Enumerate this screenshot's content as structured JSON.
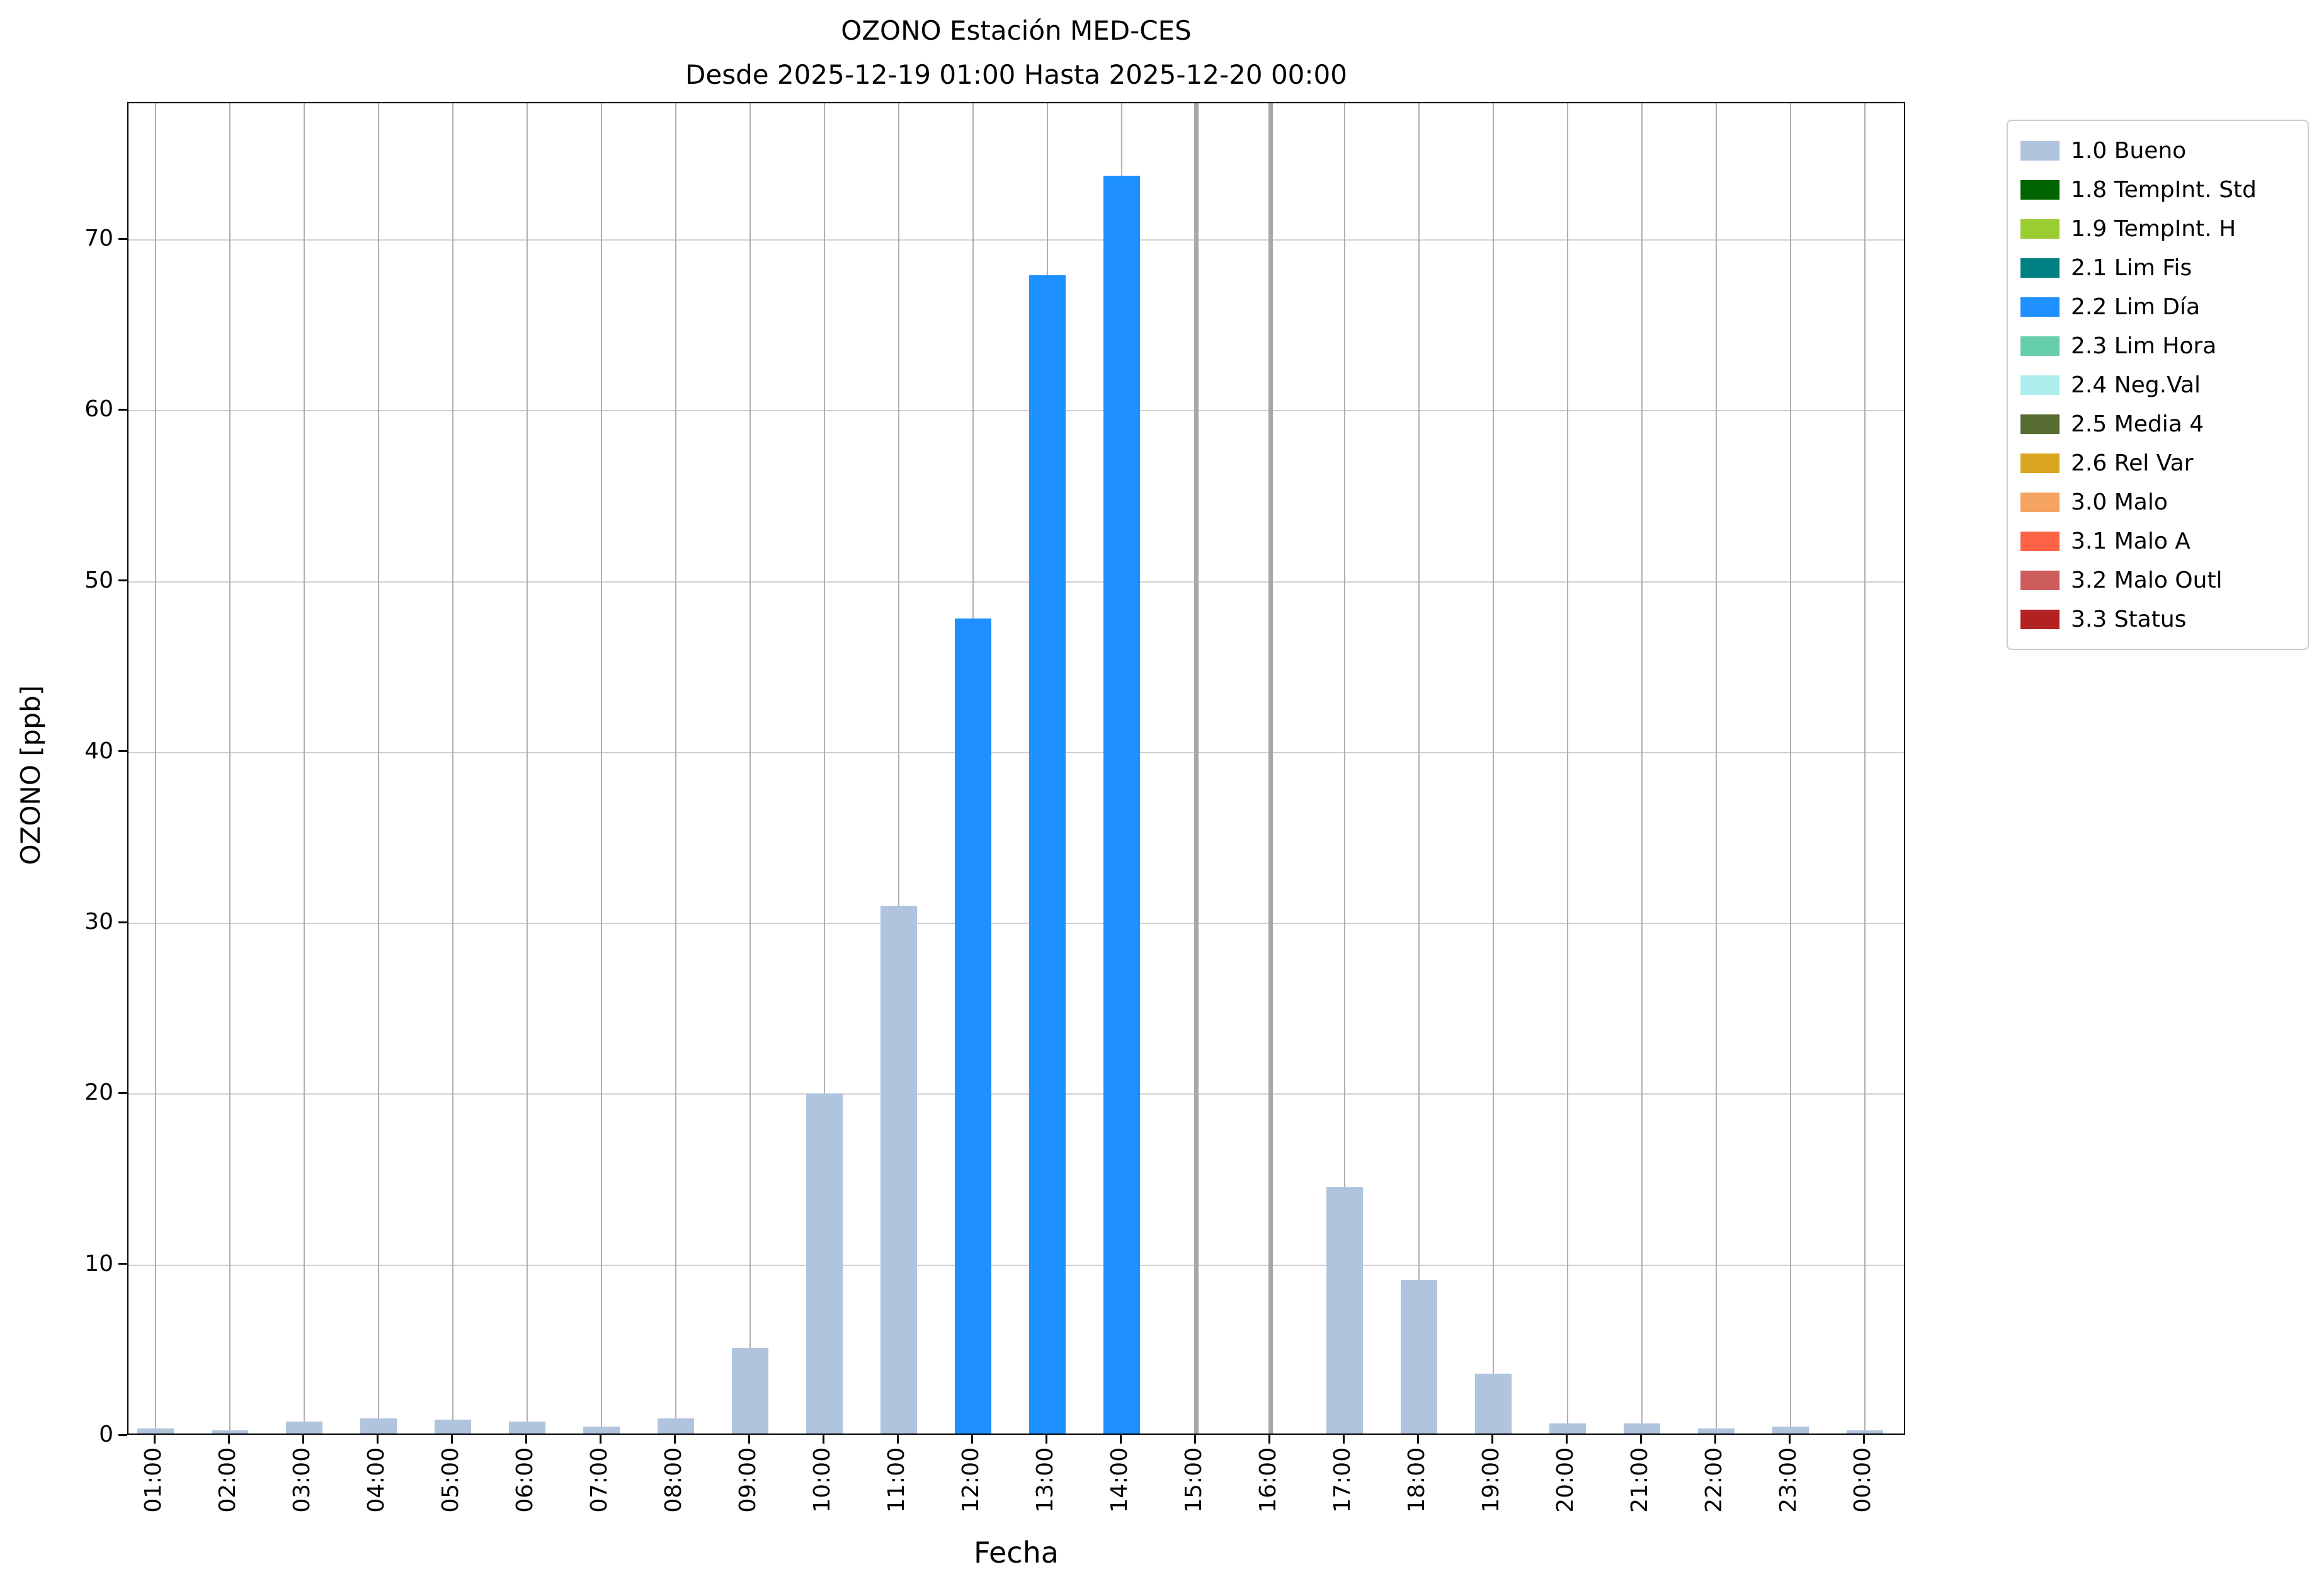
{
  "figure": {
    "title": "OZONO Estación MED-CES",
    "subtitle": "Desde 2025-12-19 01:00 Hasta 2025-12-20 00:00"
  },
  "chart_data": {
    "type": "bar",
    "title": "OZONO Estación MED-CES",
    "subtitle": "Desde 2025-12-19 01:00 Hasta 2025-12-20 00:00",
    "xlabel": "Fecha",
    "ylabel": "OZONO [ppb]",
    "ylim": [
      0,
      78
    ],
    "yticks": [
      0,
      10,
      20,
      30,
      40,
      50,
      60,
      70
    ],
    "grid": true,
    "legend_position": "outside-right-top",
    "categories": [
      "01:00",
      "02:00",
      "03:00",
      "04:00",
      "05:00",
      "06:00",
      "07:00",
      "08:00",
      "09:00",
      "10:00",
      "11:00",
      "12:00",
      "13:00",
      "14:00",
      "15:00",
      "16:00",
      "17:00",
      "18:00",
      "19:00",
      "20:00",
      "21:00",
      "22:00",
      "23:00",
      "00:00"
    ],
    "values": [
      0.3,
      0.2,
      0.7,
      0.9,
      0.8,
      0.7,
      0.4,
      0.9,
      5.0,
      19.9,
      30.9,
      47.7,
      67.8,
      73.6,
      null,
      null,
      14.4,
      9.0,
      3.5,
      0.6,
      0.6,
      0.3,
      0.4,
      0.2
    ],
    "bar_statuses": [
      "1.0 Bueno",
      "1.0 Bueno",
      "1.0 Bueno",
      "1.0 Bueno",
      "1.0 Bueno",
      "1.0 Bueno",
      "1.0 Bueno",
      "1.0 Bueno",
      "1.0 Bueno",
      "1.0 Bueno",
      "1.0 Bueno",
      "2.2 Lim Día",
      "2.2 Lim Día",
      "2.2 Lim Día",
      null,
      null,
      "1.0 Bueno",
      "1.0 Bueno",
      "1.0 Bueno",
      "1.0 Bueno",
      "1.0 Bueno",
      "1.0 Bueno",
      "1.0 Bueno",
      "1.0 Bueno"
    ],
    "missing_data_hours": [
      "15:00",
      "16:00"
    ],
    "legend": [
      {
        "label": "1.0 Bueno",
        "color": "#B0C4DE"
      },
      {
        "label": "1.8 TempInt. Std",
        "color": "#006400"
      },
      {
        "label": "1.9 TempInt. H",
        "color": "#9ACD32"
      },
      {
        "label": "2.1 Lim Fis",
        "color": "#008080"
      },
      {
        "label": "2.2 Lim Día",
        "color": "#1E90FF"
      },
      {
        "label": "2.3 Lim Hora",
        "color": "#66CDAA"
      },
      {
        "label": "2.4 Neg.Val",
        "color": "#AFEEEE"
      },
      {
        "label": "2.5 Media 4",
        "color": "#556B2F"
      },
      {
        "label": "2.6 Rel Var",
        "color": "#DAA520"
      },
      {
        "label": "3.0 Malo",
        "color": "#F4A460"
      },
      {
        "label": "3.1 Malo A",
        "color": "#FF6347"
      },
      {
        "label": "3.2 Malo Outl",
        "color": "#CD5C5C"
      },
      {
        "label": "3.3 Status",
        "color": "#B22222"
      }
    ]
  }
}
